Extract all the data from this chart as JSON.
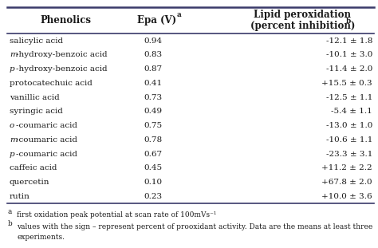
{
  "rows": [
    [
      "salicylic acid",
      "0.94",
      "-12.1 ± 1.8"
    ],
    [
      "m-hydroxy-benzoic acid",
      "0.83",
      "-10.1 ± 3.0"
    ],
    [
      "p-hydroxy-benzoic acid",
      "0.87",
      "-11.4 ± 2.0"
    ],
    [
      "protocatechuic acid",
      "0.41",
      "+15.5 ± 0.3"
    ],
    [
      "vanillic acid",
      "0.73",
      "-12.5 ± 1.1"
    ],
    [
      "syringic acid",
      "0.49",
      "-5.4 ± 1.1"
    ],
    [
      "o-coumaric acid",
      "0.75",
      "-13.0 ± 1.0"
    ],
    [
      "m-coumaric acid",
      "0.78",
      "-10.6 ± 1.1"
    ],
    [
      "p-coumaric acid",
      "0.67",
      "-23.3 ± 3.1"
    ],
    [
      "caffeic acid",
      "0.45",
      "+11.2 ± 2.2"
    ],
    [
      "quercetin",
      "0.10",
      "+67.8 ± 2.0"
    ],
    [
      "rutin",
      "0.23",
      "+10.0 ± 3.6"
    ]
  ],
  "footnote_a": "first oxidation peak potential at scan rate of 100mVs⁻¹",
  "footnote_b": "values with the sign – represent percent of prooxidant activity. Data are the means at least three",
  "footnote_b2": "experiments.",
  "bg_color": "#ffffff",
  "text_color": "#1a1a1a",
  "line_color": "#3a3a6a",
  "font_size": 7.5,
  "header_font_size": 8.5,
  "footnote_font_size": 6.5
}
